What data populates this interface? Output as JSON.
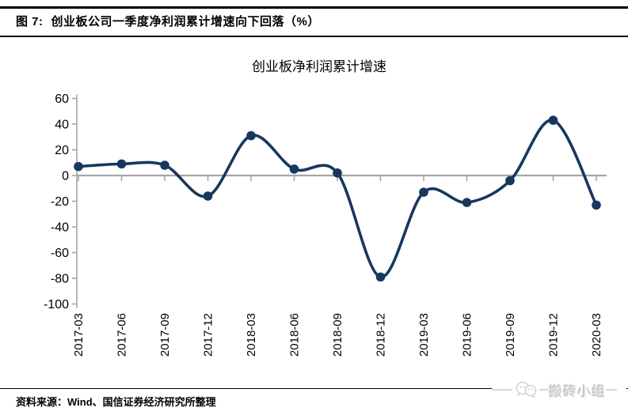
{
  "figure_header": {
    "label": "图 7:",
    "title": "创业板公司一季度净利润累计增速向下回落（%）"
  },
  "chart_data": {
    "type": "line",
    "title": "创业板净利润累计增速",
    "categories": [
      "2017-03",
      "2017-06",
      "2017-09",
      "2017-12",
      "2018-03",
      "2018-06",
      "2018-09",
      "2018-12",
      "2019-03",
      "2019-06",
      "2019-09",
      "2019-12",
      "2020-03"
    ],
    "values": [
      7,
      9,
      8,
      -16,
      31,
      5,
      2,
      -79,
      -13,
      -21,
      -4,
      43,
      -23
    ],
    "xlabel": "",
    "ylabel": "",
    "ylim": [
      -100,
      60
    ],
    "ytick_step": 20,
    "grid": "off",
    "legend": "none",
    "smooth": true,
    "marker": "circle",
    "line_color": "#17375E",
    "axis_color": "#A6A6A6",
    "zero_line_color": "#A6A6A6",
    "tick_label_color": "#000000"
  },
  "footer": {
    "source": "资料来源：Wind、国信证券经济研究所整理",
    "watermark": "搬砖小组"
  }
}
